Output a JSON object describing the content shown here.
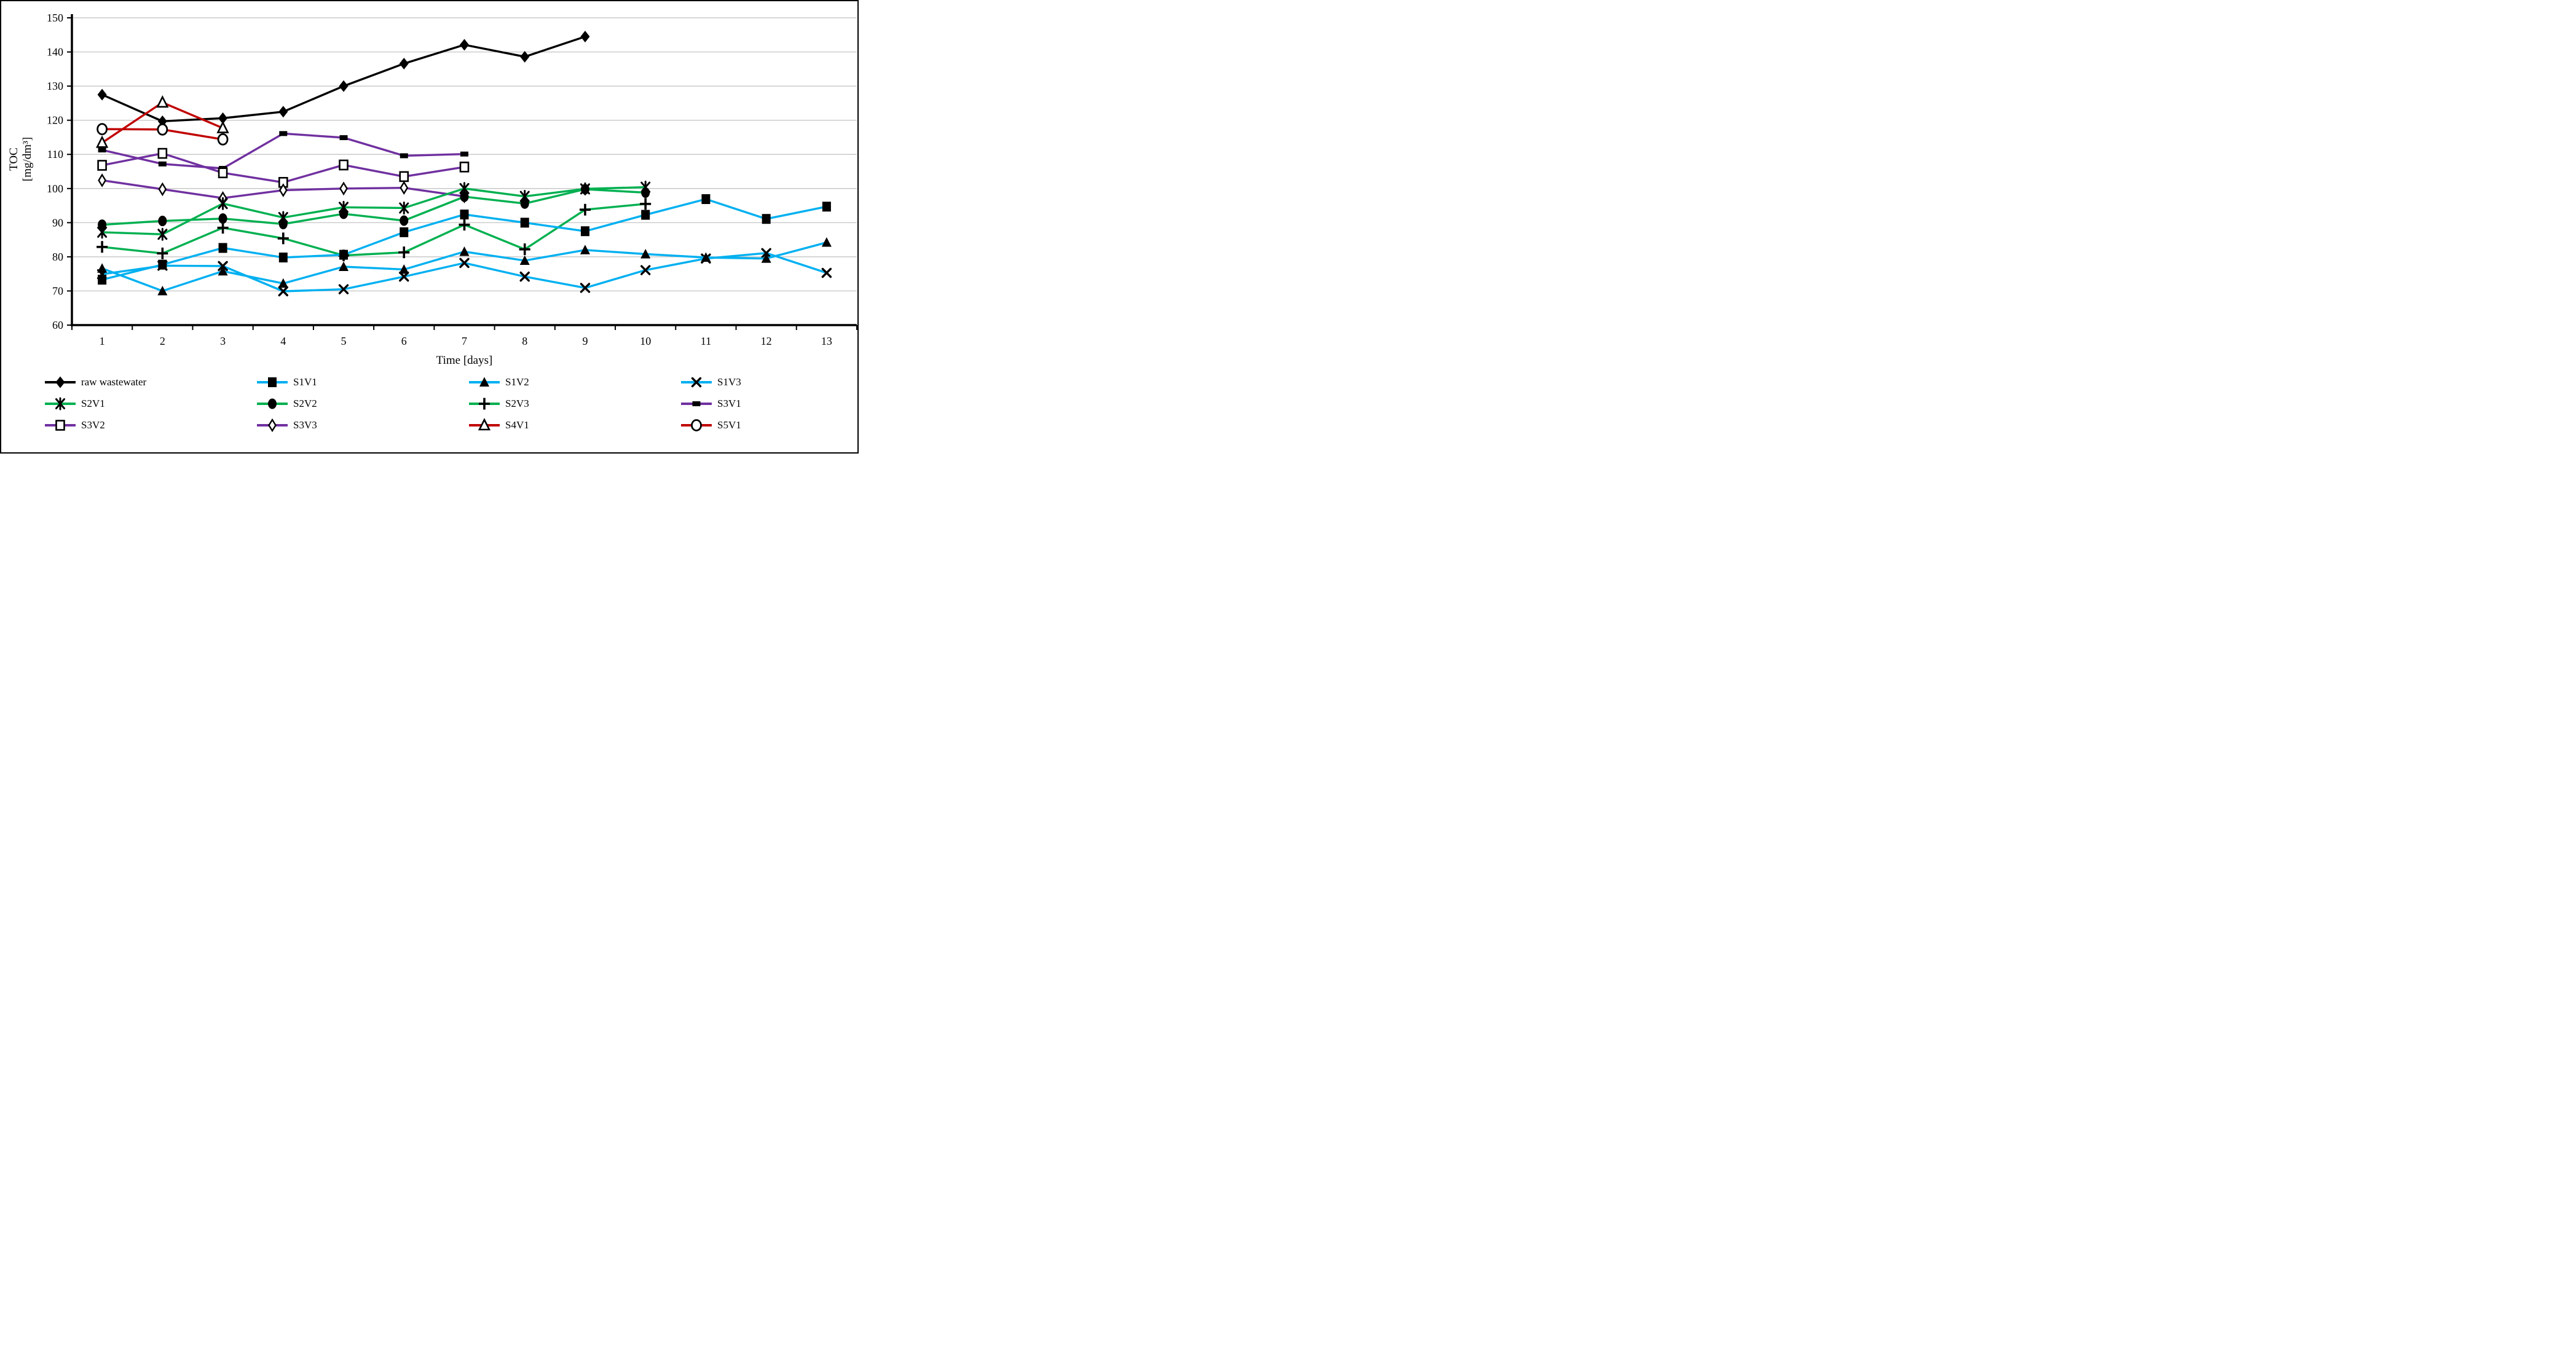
{
  "chart_data": {
    "type": "line",
    "title": "",
    "xlabel": "Time [days]",
    "ylabel_line1": "TOC",
    "ylabel_line2": "[mg/dm³]",
    "xticks": [
      1,
      2,
      3,
      4,
      5,
      6,
      7,
      8,
      9,
      10,
      11,
      12,
      13
    ],
    "yticks": [
      60,
      70,
      80,
      90,
      100,
      110,
      120,
      130,
      140,
      150
    ],
    "ylim": [
      60,
      150
    ],
    "grid": "horizontal",
    "grid_color": "#BFBFBF",
    "axis_color": "#000000",
    "legend_position": "bottom",
    "series": [
      {
        "name": "raw wastewater",
        "color": "#000000",
        "marker": "diamond",
        "x": [
          1,
          2,
          3,
          4,
          5,
          6,
          7,
          8,
          9
        ],
        "values": [
          127.5,
          119.7,
          120.6,
          122.5,
          130.0,
          136.6,
          142.1,
          138.6,
          144.5
        ]
      },
      {
        "name": "S1V1",
        "color": "#00B0F0",
        "marker": "square",
        "x": [
          1,
          2,
          3,
          4,
          5,
          6,
          7,
          8,
          9,
          10,
          11,
          12,
          13
        ],
        "values": [
          73.3,
          77.7,
          82.6,
          79.8,
          80.6,
          87.2,
          92.4,
          90.0,
          87.5,
          92.3,
          96.9,
          91.1,
          94.7
        ]
      },
      {
        "name": "S1V2",
        "color": "#00B0F0",
        "marker": "triangle",
        "x": [
          1,
          2,
          3,
          4,
          5,
          6,
          7,
          8,
          9,
          10,
          11,
          12,
          13
        ],
        "values": [
          76.6,
          70.0,
          75.8,
          72.2,
          77.1,
          76.3,
          81.5,
          78.9,
          82.0,
          80.8,
          79.8,
          79.5,
          84.2
        ]
      },
      {
        "name": "S1V3",
        "color": "#00B0F0",
        "marker": "x",
        "x": [
          1,
          2,
          3,
          4,
          5,
          6,
          7,
          8,
          9,
          10,
          11,
          12,
          13
        ],
        "values": [
          74.9,
          77.4,
          77.3,
          69.9,
          70.5,
          74.2,
          78.2,
          74.2,
          70.9,
          76.1,
          79.5,
          81.1,
          75.3
        ]
      },
      {
        "name": "S2V1",
        "color": "#00B050",
        "marker": "star",
        "x": [
          1,
          2,
          3,
          4,
          5,
          6,
          7,
          8,
          9,
          10
        ],
        "values": [
          87.2,
          86.6,
          95.6,
          91.5,
          94.5,
          94.3,
          100.0,
          97.7,
          99.9,
          100.4
        ]
      },
      {
        "name": "S2V2",
        "color": "#00B050",
        "marker": "circle",
        "x": [
          1,
          2,
          3,
          4,
          5,
          6,
          7,
          8,
          9,
          10
        ],
        "values": [
          89.4,
          90.5,
          91.2,
          89.6,
          92.6,
          90.6,
          97.6,
          95.6,
          99.8,
          98.8
        ]
      },
      {
        "name": "S2V3",
        "color": "#00B050",
        "marker": "plus",
        "x": [
          1,
          2,
          3,
          4,
          5,
          6,
          7,
          8,
          9,
          10
        ],
        "values": [
          82.9,
          81.0,
          88.5,
          85.4,
          80.4,
          81.3,
          89.4,
          82.2,
          93.8,
          95.5
        ]
      },
      {
        "name": "S3V1",
        "color": "#7030A0",
        "marker": "dash",
        "x": [
          1,
          2,
          3,
          4,
          5,
          6,
          7
        ],
        "values": [
          111.3,
          107.2,
          105.9,
          116.1,
          114.9,
          109.6,
          110.1
        ]
      },
      {
        "name": "S3V2",
        "color": "#7030A0",
        "marker": "square-open",
        "x": [
          1,
          2,
          3,
          4,
          5,
          6,
          7
        ],
        "values": [
          106.8,
          110.3,
          104.6,
          101.8,
          106.9,
          103.5,
          106.3
        ]
      },
      {
        "name": "S3V3",
        "color": "#7030A0",
        "marker": "diamond-open",
        "x": [
          1,
          2,
          3,
          4,
          5,
          6,
          7
        ],
        "values": [
          102.4,
          99.8,
          97.2,
          99.5,
          100.0,
          100.2,
          97.7
        ]
      },
      {
        "name": "S4V1",
        "color": "#C00000",
        "marker": "triangle-open",
        "x": [
          1,
          2,
          3
        ],
        "values": [
          113.4,
          125.2,
          117.7
        ]
      },
      {
        "name": "S5V1",
        "color": "#C00000",
        "marker": "circle-open",
        "x": [
          1,
          2,
          3
        ],
        "values": [
          117.4,
          117.3,
          114.4
        ]
      }
    ],
    "draw_order": [
      "raw wastewater",
      "S5V1",
      "S4V1",
      "S3V1",
      "S3V2",
      "S3V3",
      "S2V1",
      "S2V2",
      "S2V3",
      "S1V3",
      "S1V1",
      "S1V2"
    ]
  }
}
